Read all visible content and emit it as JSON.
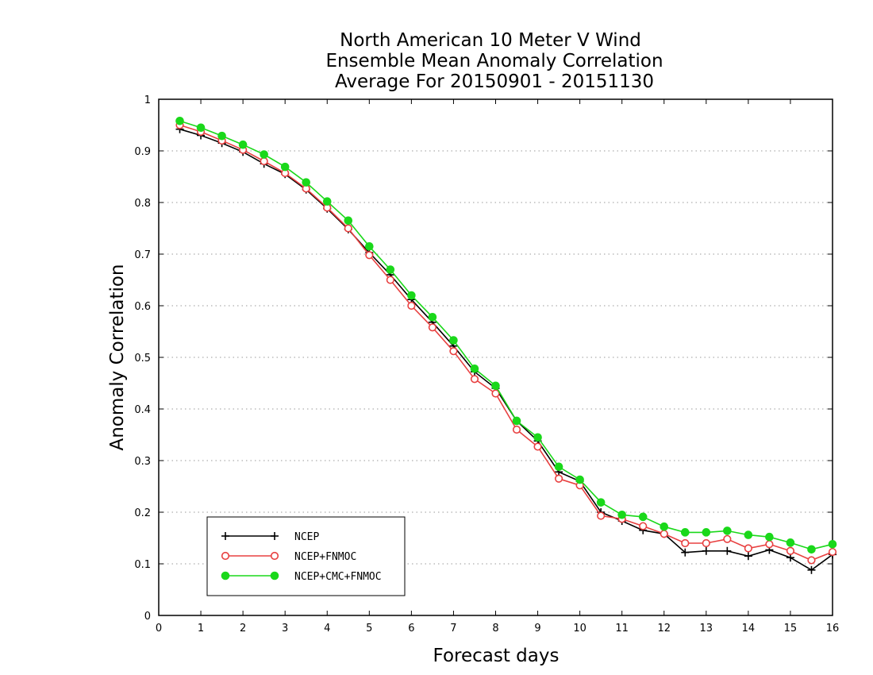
{
  "chart_data": {
    "type": "line",
    "title_lines": [
      "North American 10 Meter V Wind",
      "Ensemble Mean Anomaly Correlation",
      "Average For 20150901 - 20151130"
    ],
    "xlabel": "Forecast days",
    "ylabel": "Anomaly Correlation",
    "xlim": [
      0,
      16
    ],
    "ylim": [
      0,
      1
    ],
    "xticks": [
      0,
      1,
      2,
      3,
      4,
      5,
      6,
      7,
      8,
      9,
      10,
      11,
      12,
      13,
      14,
      15,
      16
    ],
    "yticks": [
      0,
      0.1,
      0.2,
      0.3,
      0.4,
      0.5,
      0.6,
      0.7,
      0.8,
      0.9,
      1
    ],
    "ytick_labels": [
      "0",
      "0.1",
      "0.2",
      "0.3",
      "0.4",
      "0.5",
      "0.6",
      "0.7",
      "0.8",
      "0.9",
      "1"
    ],
    "grid": "horizontal dotted",
    "legend_position": "bottom-left",
    "x": [
      0.5,
      1,
      1.5,
      2,
      2.5,
      3,
      3.5,
      4,
      4.5,
      5,
      5.5,
      6,
      6.5,
      7,
      7.5,
      8,
      8.5,
      9,
      9.5,
      10,
      10.5,
      11,
      11.5,
      12,
      12.5,
      13,
      13.5,
      14,
      14.5,
      15,
      15.5,
      16
    ],
    "series": [
      {
        "name": "NCEP",
        "color": "#000000",
        "marker": "plus",
        "values": [
          0.942,
          0.93,
          0.915,
          0.898,
          0.875,
          0.855,
          0.825,
          0.788,
          0.748,
          0.703,
          0.66,
          0.612,
          0.568,
          0.522,
          0.472,
          0.44,
          0.377,
          0.338,
          0.278,
          0.26,
          0.2,
          0.183,
          0.165,
          0.158,
          0.122,
          0.125,
          0.125,
          0.115,
          0.127,
          0.112,
          0.088,
          0.118
        ]
      },
      {
        "name": "NCEP+FNMOC",
        "color": "#e84040",
        "marker": "open-circle",
        "values": [
          0.95,
          0.937,
          0.92,
          0.902,
          0.88,
          0.857,
          0.827,
          0.79,
          0.75,
          0.698,
          0.65,
          0.6,
          0.558,
          0.512,
          0.458,
          0.43,
          0.36,
          0.327,
          0.265,
          0.252,
          0.193,
          0.187,
          0.173,
          0.158,
          0.14,
          0.14,
          0.148,
          0.13,
          0.138,
          0.125,
          0.107,
          0.123
        ]
      },
      {
        "name": "NCEP+CMC+FNMOC",
        "color": "#1ad81a",
        "marker": "filled-circle",
        "values": [
          0.958,
          0.945,
          0.929,
          0.912,
          0.893,
          0.869,
          0.839,
          0.802,
          0.765,
          0.715,
          0.67,
          0.62,
          0.578,
          0.533,
          0.478,
          0.445,
          0.377,
          0.345,
          0.288,
          0.263,
          0.219,
          0.195,
          0.191,
          0.172,
          0.161,
          0.161,
          0.164,
          0.156,
          0.152,
          0.141,
          0.128,
          0.138
        ]
      }
    ]
  }
}
